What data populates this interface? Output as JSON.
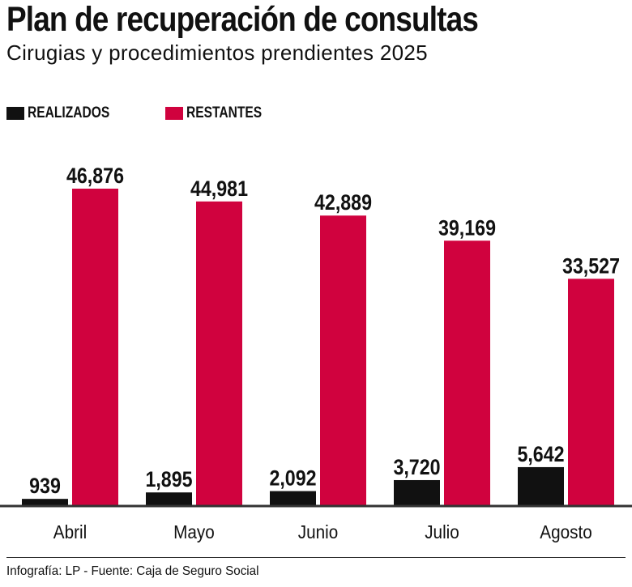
{
  "title": "Plan de recuperación de consultas",
  "subtitle": "Cirugias y procedimientos prendientes 2025",
  "source": "Infografía: LP - Fuente: Caja de Seguro Social",
  "colors": {
    "realizados": "#111111",
    "restantes": "#d0023e",
    "axis": "#333333"
  },
  "chart_data": {
    "type": "bar",
    "title": "Plan de recuperación de consultas",
    "subtitle": "Cirugias y procedimientos prendientes 2025",
    "xlabel": "",
    "ylabel": "",
    "ylim": [
      0,
      50000
    ],
    "grid": false,
    "legend_position": "top-left",
    "categories": [
      "Abril",
      "Mayo",
      "Junio",
      "Julio",
      "Agosto"
    ],
    "series": [
      {
        "name": "REALIZADOS",
        "values": [
          939,
          1895,
          2092,
          3720,
          5642
        ],
        "labels": [
          "939",
          "1,895",
          "2,092",
          "3,720",
          "5,642"
        ]
      },
      {
        "name": "RESTANTES",
        "values": [
          46876,
          44981,
          42889,
          39169,
          33527
        ],
        "labels": [
          "46,876",
          "44,981",
          "42,889",
          "39,169",
          "33,527"
        ]
      }
    ]
  }
}
